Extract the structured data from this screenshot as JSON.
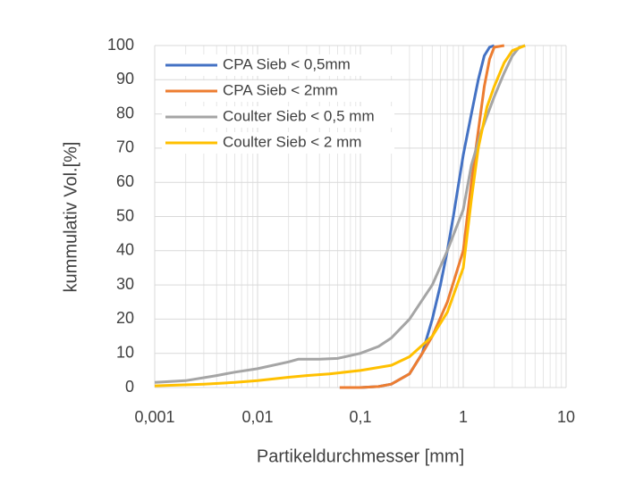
{
  "chart_data": {
    "type": "line",
    "xlabel": "Partikeldurchmesser [mm]",
    "ylabel": "kummulativ Vol.[%]",
    "xscale": "log",
    "xlim": [
      0.001,
      10
    ],
    "xticks": [
      {
        "value": 0.001,
        "label": "0,001"
      },
      {
        "value": 0.01,
        "label": "0,01"
      },
      {
        "value": 0.1,
        "label": "0,1"
      },
      1,
      10
    ],
    "ylim": [
      0,
      100
    ],
    "yticks": [
      0,
      10,
      20,
      30,
      40,
      50,
      60,
      70,
      80,
      90,
      100
    ],
    "grid": true,
    "minor_grid": true,
    "legend": "upper left",
    "series": [
      {
        "name": "CPA Sieb < 0,5mm",
        "color": "#4472c4",
        "x": [
          0.063,
          0.1,
          0.15,
          0.2,
          0.3,
          0.4,
          0.5,
          0.6,
          0.7,
          0.8,
          1,
          1.2,
          1.4,
          1.6,
          1.8,
          2
        ],
        "values": [
          0,
          0,
          0.3,
          1,
          4,
          10,
          20,
          30,
          40,
          50,
          68,
          80,
          90,
          97,
          99.5,
          100
        ]
      },
      {
        "name": "CPA Sieb < 2mm",
        "color": "#ed7d31",
        "x": [
          0.063,
          0.1,
          0.15,
          0.2,
          0.3,
          0.4,
          0.5,
          0.7,
          1,
          1.2,
          1.4,
          1.6,
          1.8,
          2,
          2.5
        ],
        "values": [
          0,
          0,
          0.3,
          1,
          4,
          10,
          15,
          25,
          40,
          60,
          75,
          88,
          96,
          99.5,
          100
        ]
      },
      {
        "name": "Coulter Sieb < 0,5 mm",
        "color": "#a5a5a5",
        "x": [
          0.001,
          0.002,
          0.004,
          0.006,
          0.01,
          0.02,
          0.025,
          0.04,
          0.06,
          0.1,
          0.15,
          0.2,
          0.3,
          0.5,
          0.7,
          1,
          1.2,
          1.5,
          2,
          2.5,
          3,
          3.5,
          4
        ],
        "values": [
          1.5,
          2,
          3.5,
          4.5,
          5.5,
          7.5,
          8.3,
          8.3,
          8.5,
          10,
          12,
          14.5,
          20,
          30,
          40,
          52,
          65,
          75,
          85,
          92,
          97,
          99.5,
          100
        ]
      },
      {
        "name": "Coulter Sieb < 2 mm",
        "color": "#ffc000",
        "x": [
          0.001,
          0.003,
          0.006,
          0.01,
          0.02,
          0.03,
          0.05,
          0.1,
          0.2,
          0.3,
          0.5,
          0.7,
          1,
          1.2,
          1.4,
          1.7,
          2,
          2.5,
          3,
          4
        ],
        "values": [
          0.5,
          1,
          1.5,
          2,
          3,
          3.5,
          4,
          5,
          6.5,
          9,
          15,
          22,
          35,
          55,
          70,
          82,
          88,
          95,
          98.5,
          100
        ]
      }
    ]
  }
}
